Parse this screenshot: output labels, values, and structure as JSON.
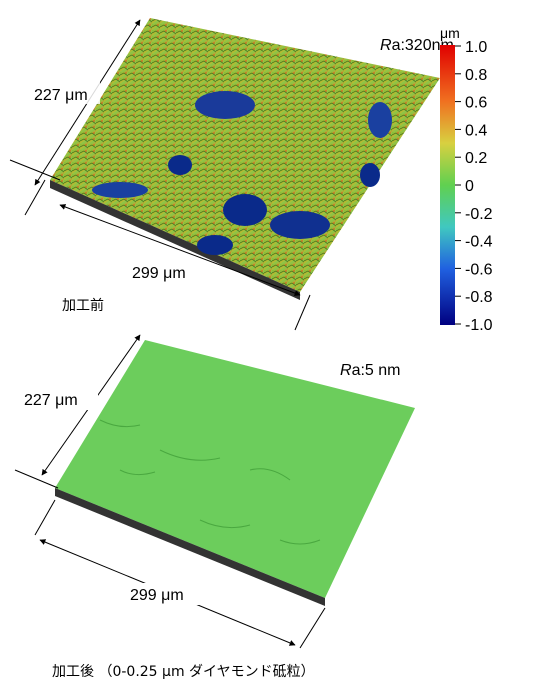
{
  "before": {
    "ra": {
      "italic": "R",
      "rest": "a:320nm"
    },
    "depth_label": "227 μm",
    "width_label": "299 μm",
    "caption": "加工前"
  },
  "colorbar": {
    "unit": "μm",
    "ticks": [
      "1.0",
      "0.8",
      "0.6",
      "0.4",
      "0.2",
      "0",
      "-0.2",
      "-0.4",
      "-0.6",
      "-0.8",
      "-1.0"
    ]
  },
  "after": {
    "ra": {
      "italic": "R",
      "rest": "a:5 nm"
    },
    "depth_label": "227 μm",
    "width_label": "299 μm",
    "caption": "加工後 （0-0.25 μm ダイヤモンド砥粒）"
  }
}
